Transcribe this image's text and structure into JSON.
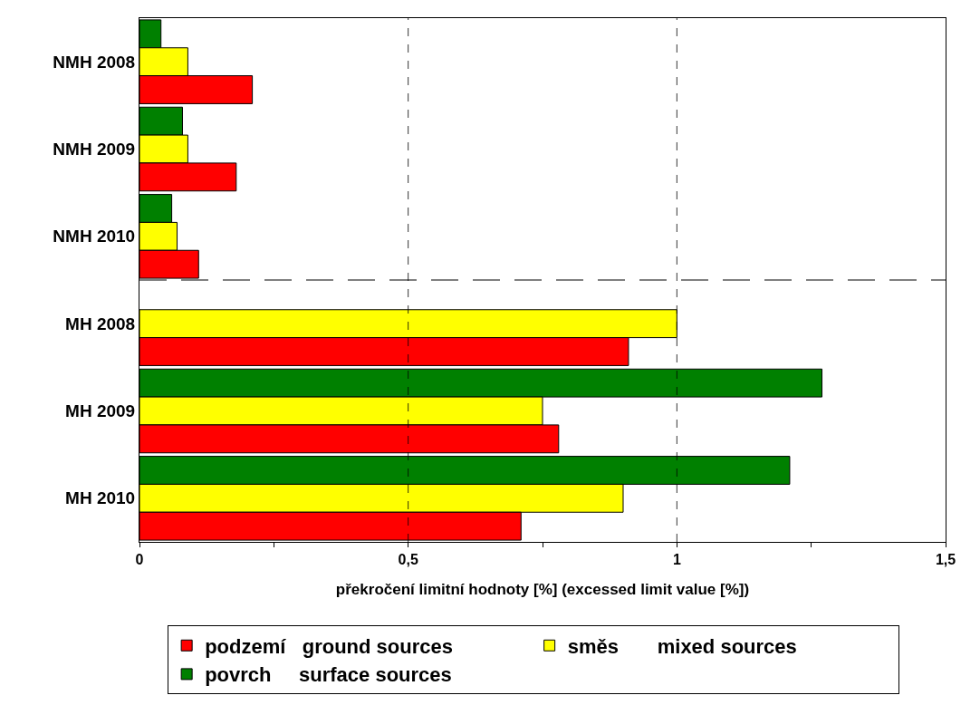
{
  "chart_data": {
    "type": "bar",
    "orientation": "horizontal",
    "xlabel": "překročení limitní hodnoty [%] (excessed limit value [%])",
    "categories": [
      "NMH 2008",
      "NMH 2009",
      "NMH 2010",
      "MH 2008",
      "MH 2009",
      "MH 2010"
    ],
    "series": [
      {
        "name": "podzemí   ground sources",
        "color": "#ff0000",
        "values": [
          0.21,
          0.18,
          0.11,
          0.91,
          0.78,
          0.71
        ]
      },
      {
        "name": "směs       mixed sources",
        "color": "#ffff00",
        "values": [
          0.09,
          0.09,
          0.07,
          1.0,
          0.75,
          0.9
        ]
      },
      {
        "name": "povrch     surface sources",
        "color": "#008000",
        "values": [
          0.04,
          0.08,
          0.06,
          null,
          1.27,
          1.21
        ]
      }
    ],
    "xlim": [
      0,
      1.5
    ],
    "xticks": [
      0,
      {
        "value": 0.25,
        "label": null
      },
      {
        "value": 0.5,
        "label": "0,5"
      },
      {
        "value": 0.75,
        "label": null
      },
      1,
      {
        "value": 1.25,
        "label": null
      },
      {
        "value": 1.5,
        "label": "1,5"
      }
    ],
    "grid": "x",
    "legend": "bottom"
  }
}
